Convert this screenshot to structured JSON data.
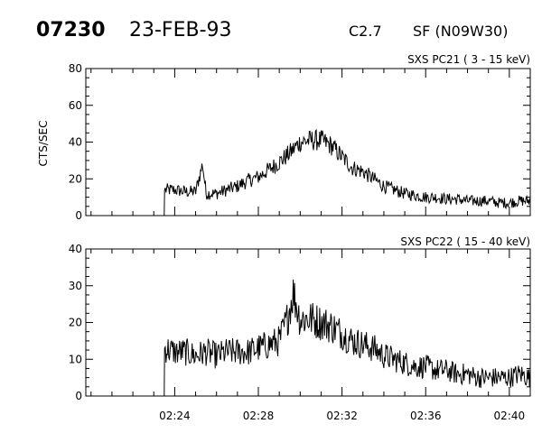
{
  "header": {
    "event_id": "07230",
    "date": "23-FEB-93",
    "goes_class": "C2.7",
    "location": "SF (N09W30)"
  },
  "chart_data": [
    {
      "type": "line",
      "title": "SXS PC21  (  3 - 15 keV)",
      "ylabel": "CTS/SEC",
      "xlabel": "",
      "xlim": [
        "02:19:45",
        "02:41:00"
      ],
      "ylim": [
        0,
        80
      ],
      "yticks": [
        0,
        20,
        40,
        60,
        80
      ],
      "xticks": [
        "02:24",
        "02:28",
        "02:32",
        "02:36",
        "02:40"
      ],
      "series": [
        {
          "x": [
            "02:23:30",
            "02:23:31",
            "02:24:00",
            "02:24:30",
            "02:25:00",
            "02:25:20",
            "02:25:30",
            "02:26:00",
            "02:26:30",
            "02:27:00",
            "02:27:30",
            "02:28:00",
            "02:28:30",
            "02:29:00",
            "02:29:30",
            "02:30:00",
            "02:30:30",
            "02:31:00",
            "02:31:30",
            "02:32:00",
            "02:32:30",
            "02:33:00",
            "02:33:30",
            "02:34:00",
            "02:34:30",
            "02:35:00",
            "02:35:30",
            "02:36:00",
            "02:36:30",
            "02:37:00",
            "02:37:30",
            "02:38:00",
            "02:38:30",
            "02:39:00",
            "02:39:30",
            "02:40:00",
            "02:40:30",
            "02:41:00"
          ],
          "y": [
            0,
            14,
            14,
            13,
            13,
            28,
            12,
            12,
            14,
            16,
            19,
            21,
            25,
            29,
            34,
            40,
            41,
            41,
            38,
            32,
            26,
            24,
            20,
            16,
            14,
            12,
            11,
            10,
            10,
            9,
            9,
            8,
            8,
            8,
            7,
            7,
            8,
            8
          ],
          "noise": 4
        }
      ]
    },
    {
      "type": "line",
      "title": "SXS PC22  ( 15 - 40 keV)",
      "ylabel": "",
      "xlabel": "",
      "xlim": [
        "02:19:45",
        "02:41:00"
      ],
      "ylim": [
        0,
        40
      ],
      "yticks": [
        0,
        10,
        20,
        30,
        40
      ],
      "xticks": [
        "02:24",
        "02:28",
        "02:32",
        "02:36",
        "02:40"
      ],
      "series": [
        {
          "x": [
            "02:23:30",
            "02:23:31",
            "02:24:00",
            "02:24:30",
            "02:25:00",
            "02:25:30",
            "02:26:00",
            "02:26:30",
            "02:27:00",
            "02:27:30",
            "02:28:00",
            "02:28:30",
            "02:29:00",
            "02:29:20",
            "02:29:40",
            "02:30:00",
            "02:30:30",
            "02:31:00",
            "02:31:30",
            "02:32:00",
            "02:32:30",
            "02:33:00",
            "02:33:30",
            "02:34:00",
            "02:34:30",
            "02:35:00",
            "02:35:30",
            "02:36:00",
            "02:36:30",
            "02:37:00",
            "02:37:30",
            "02:38:00",
            "02:38:30",
            "02:39:00",
            "02:39:30",
            "02:40:00",
            "02:40:30",
            "02:41:00"
          ],
          "y": [
            0,
            13,
            12,
            12,
            11,
            12,
            11,
            12,
            12,
            12,
            13,
            14,
            15,
            20,
            28,
            21,
            21,
            20,
            19,
            17,
            15,
            14,
            13,
            11,
            10,
            9,
            8,
            8,
            7,
            7,
            6,
            6,
            5,
            5,
            5,
            5,
            6,
            5
          ],
          "noise": 3.5
        }
      ]
    }
  ]
}
